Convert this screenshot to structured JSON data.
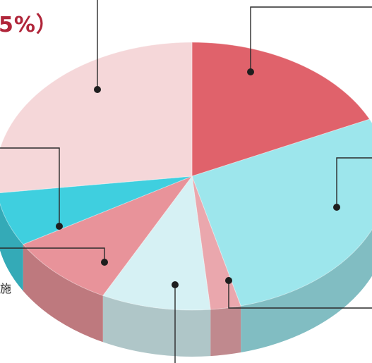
{
  "chart_data": {
    "type": "pie",
    "style": "3d-tilted",
    "slices": [
      {
        "id": "red",
        "value": 18.0,
        "color": "#e0626b"
      },
      {
        "id": "cyan-big",
        "value": 28.0,
        "color": "#9de6ec"
      },
      {
        "id": "pink-small",
        "value": 2.5,
        "color": "#eaa7ad"
      },
      {
        "id": "light-blue",
        "value": 9.0,
        "color": "#d6f1f4"
      },
      {
        "id": "rose",
        "value": 9.0,
        "color": "#e8939a"
      },
      {
        "id": "teal",
        "value": 6.5,
        "color": "#3fcfdf"
      },
      {
        "id": "pale-pink",
        "value": 27.0,
        "color": "#f5d7d9"
      }
    ],
    "visible_text": {
      "top_left_percent": "5%）",
      "left_edge_char": "施"
    }
  }
}
